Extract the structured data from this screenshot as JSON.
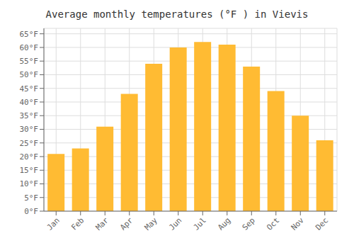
{
  "chart_data": {
    "type": "bar",
    "title": "Average monthly temperatures (°F ) in Vievis",
    "categories": [
      "Jan",
      "Feb",
      "Mar",
      "Apr",
      "May",
      "Jun",
      "Jul",
      "Aug",
      "Sep",
      "Oct",
      "Nov",
      "Dec"
    ],
    "values": [
      21,
      23,
      31,
      43,
      54,
      60,
      62,
      61,
      53,
      44,
      35,
      26
    ],
    "color": "#FFBB33",
    "ylim": [
      0,
      67
    ],
    "yticks": [
      {
        "value": 0,
        "label": "0°F"
      },
      {
        "value": 5,
        "label": "5°F"
      },
      {
        "value": 10,
        "label": "10°F"
      },
      {
        "value": 15,
        "label": "15°F"
      },
      {
        "value": 20,
        "label": "20°F"
      },
      {
        "value": 25,
        "label": "25°F"
      },
      {
        "value": 30,
        "label": "30°F"
      },
      {
        "value": 35,
        "label": "35°F"
      },
      {
        "value": 40,
        "label": "40°F"
      },
      {
        "value": 45,
        "label": "45°F"
      },
      {
        "value": 50,
        "label": "50°F"
      },
      {
        "value": 55,
        "label": "55°F"
      },
      {
        "value": 60,
        "label": "60°F"
      },
      {
        "value": 65,
        "label": "65°F"
      }
    ],
    "grid": true
  }
}
